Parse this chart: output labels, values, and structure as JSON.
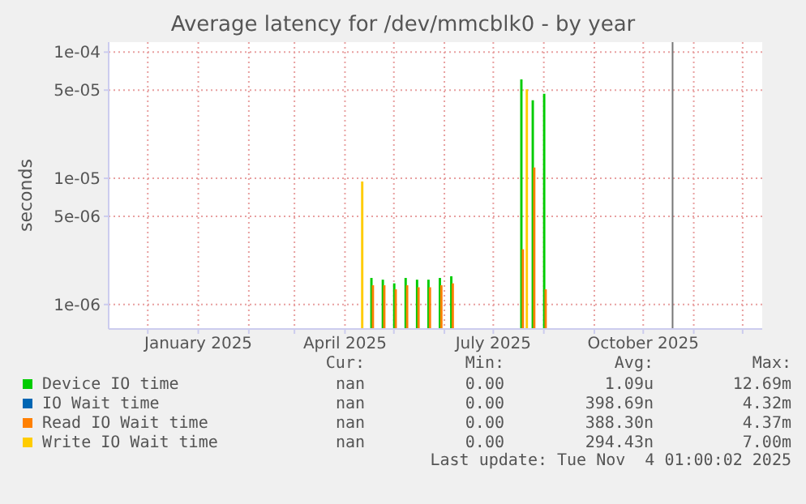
{
  "chart_data": {
    "type": "bar",
    "title": "Average latency for /dev/mmcblk0 - by year",
    "ylabel": "seconds",
    "x": [
      "2025-04-11",
      "2025-04-18",
      "2025-04-25",
      "2025-05-02",
      "2025-05-09",
      "2025-05-16",
      "2025-05-23",
      "2025-05-30",
      "2025-06-06",
      "2025-07-19",
      "2025-07-21",
      "2025-07-26",
      "2025-08-02"
    ],
    "series": [
      {
        "name": "Device IO time",
        "color": "#00cc00",
        "values": [
          null,
          1.6e-06,
          1.55e-06,
          1.45e-06,
          1.6e-06,
          1.55e-06,
          1.55e-06,
          1.6e-06,
          1.65e-06,
          6e-05,
          null,
          4.1e-05,
          4.6e-05
        ]
      },
      {
        "name": "IO Wait time",
        "color": "#0066b3",
        "values": [
          null,
          null,
          null,
          null,
          null,
          null,
          null,
          null,
          null,
          null,
          null,
          null,
          null
        ]
      },
      {
        "name": "Read IO Wait time",
        "color": "#ff8000",
        "values": [
          null,
          1.4e-06,
          1.4e-06,
          1.3e-06,
          1.4e-06,
          1.35e-06,
          1.35e-06,
          1.4e-06,
          1.45e-06,
          2.7e-06,
          null,
          1.2e-05,
          1.3e-06
        ]
      },
      {
        "name": "Write IO Wait time",
        "color": "#ffcc00",
        "values": [
          9.3e-06,
          null,
          null,
          null,
          null,
          null,
          null,
          null,
          null,
          null,
          5e-05,
          null,
          null
        ]
      }
    ],
    "log": "y",
    "ylim": [
      6.4e-07,
      0.00012
    ],
    "yticks": [
      {
        "value": 1e-06,
        "label": "1e-06"
      },
      {
        "value": 5e-06,
        "label": "5e-06"
      },
      {
        "value": 1e-05,
        "label": "1e-05"
      },
      {
        "value": 5e-05,
        "label": "5e-05"
      },
      {
        "value": 0.0001,
        "label": "1e-04"
      }
    ],
    "xlim": [
      "2024-11-07",
      "2025-12-13"
    ],
    "xticks": [
      {
        "value": "2024-12-01",
        "label": null
      },
      {
        "value": "2025-01-01",
        "label": "January 2025"
      },
      {
        "value": "2025-02-01",
        "label": null
      },
      {
        "value": "2025-03-01",
        "label": null
      },
      {
        "value": "2025-04-01",
        "label": "April 2025"
      },
      {
        "value": "2025-05-01",
        "label": null
      },
      {
        "value": "2025-06-01",
        "label": null
      },
      {
        "value": "2025-07-01",
        "label": "July 2025"
      },
      {
        "value": "2025-08-01",
        "label": null
      },
      {
        "value": "2025-09-01",
        "label": null
      },
      {
        "value": "2025-10-01",
        "label": "October 2025"
      },
      {
        "value": "2025-11-01",
        "label": null
      },
      {
        "value": "2025-12-01",
        "label": null
      }
    ],
    "ref_lines": [
      {
        "axis": "x",
        "value": "2025-10-19",
        "label": null,
        "color": "#777777"
      }
    ],
    "grid": true,
    "legend": "bottom",
    "annotations": [
      "Cur:",
      "Min:",
      "Avg:",
      "Max:",
      "nan",
      "0.00",
      "1.09u",
      "12.69m",
      "nan",
      "0.00",
      "398.69n",
      "4.32m",
      "nan",
      "0.00",
      "388.30n",
      "4.37m",
      "nan",
      "0.00",
      "294.43n",
      "7.00m",
      "Last update: Tue Nov  4 01:00:02 2025"
    ]
  }
}
